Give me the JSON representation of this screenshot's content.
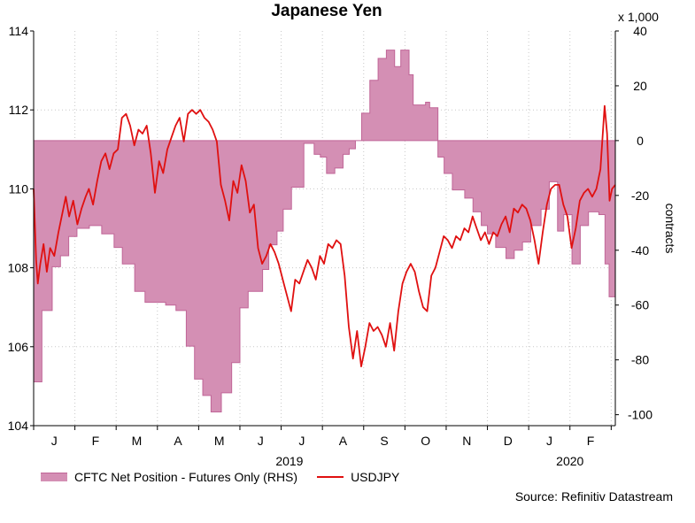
{
  "chart_data": {
    "type": "area+line",
    "title": "Japanese Yen",
    "left_axis": {
      "label": "",
      "min": 104,
      "max": 114,
      "ticks": [
        104,
        106,
        108,
        110,
        112,
        114
      ]
    },
    "right_axis": {
      "label": "contracts",
      "multiplier": "x 1,000",
      "min": -104,
      "max": 40,
      "ticks": [
        40,
        20,
        0,
        -20,
        -40,
        -60,
        -80,
        -100
      ]
    },
    "x_axis": {
      "min": 0,
      "max": 14.1,
      "month_labels": [
        "J",
        "F",
        "M",
        "A",
        "M",
        "J",
        "J",
        "A",
        "S",
        "O",
        "N",
        "D",
        "J",
        "F"
      ],
      "year_labels": [
        {
          "text": "2019",
          "pos": 6.2
        },
        {
          "text": "2020",
          "pos": 13.0
        }
      ]
    },
    "series": [
      {
        "name": "CFTC Net Position - Futures Only (RHS)",
        "axis": "right",
        "kind": "step-area",
        "color": "#d48fb4",
        "edge": "#c06597",
        "points": [
          [
            0.0,
            -88
          ],
          [
            0.2,
            -62
          ],
          [
            0.45,
            -46
          ],
          [
            0.65,
            -42
          ],
          [
            0.85,
            -35
          ],
          [
            1.05,
            -32
          ],
          [
            1.35,
            -31
          ],
          [
            1.65,
            -34
          ],
          [
            1.95,
            -39
          ],
          [
            2.15,
            -45
          ],
          [
            2.45,
            -55
          ],
          [
            2.7,
            -59
          ],
          [
            3.2,
            -60
          ],
          [
            3.45,
            -62
          ],
          [
            3.7,
            -75
          ],
          [
            3.9,
            -87
          ],
          [
            4.1,
            -93
          ],
          [
            4.3,
            -99
          ],
          [
            4.55,
            -92
          ],
          [
            4.8,
            -81
          ],
          [
            5.0,
            -61
          ],
          [
            5.2,
            -55
          ],
          [
            5.55,
            -47
          ],
          [
            5.7,
            -38
          ],
          [
            5.9,
            -33
          ],
          [
            6.05,
            -25
          ],
          [
            6.25,
            -17
          ],
          [
            6.55,
            -1
          ],
          [
            6.8,
            -5
          ],
          [
            6.95,
            -6
          ],
          [
            7.1,
            -12
          ],
          [
            7.3,
            -10
          ],
          [
            7.5,
            -5
          ],
          [
            7.65,
            -3
          ],
          [
            7.8,
            0
          ],
          [
            7.95,
            10
          ],
          [
            8.15,
            22
          ],
          [
            8.35,
            30
          ],
          [
            8.55,
            33
          ],
          [
            8.75,
            27
          ],
          [
            8.9,
            33
          ],
          [
            9.1,
            24
          ],
          [
            9.2,
            13
          ],
          [
            9.5,
            14
          ],
          [
            9.6,
            12
          ],
          [
            9.8,
            -6
          ],
          [
            9.95,
            -12
          ],
          [
            10.15,
            -18
          ],
          [
            10.45,
            -21
          ],
          [
            10.65,
            -26
          ],
          [
            10.85,
            -31
          ],
          [
            11.0,
            -34
          ],
          [
            11.2,
            -39
          ],
          [
            11.45,
            -43
          ],
          [
            11.65,
            -40
          ],
          [
            11.85,
            -37
          ],
          [
            12.05,
            -31
          ],
          [
            12.3,
            -25
          ],
          [
            12.5,
            -15
          ],
          [
            12.7,
            -33
          ],
          [
            12.85,
            -27
          ],
          [
            13.05,
            -45
          ],
          [
            13.25,
            -31
          ],
          [
            13.45,
            -26
          ],
          [
            13.7,
            -27
          ],
          [
            13.85,
            -45
          ],
          [
            13.95,
            -57
          ],
          [
            14.1,
            -57
          ]
        ]
      },
      {
        "name": "USDJPY",
        "axis": "left",
        "kind": "line",
        "color": "#e01010",
        "points": [
          [
            0.0,
            110.0
          ],
          [
            0.06,
            108.2
          ],
          [
            0.1,
            107.6
          ],
          [
            0.16,
            108.1
          ],
          [
            0.24,
            108.6
          ],
          [
            0.32,
            107.9
          ],
          [
            0.4,
            108.5
          ],
          [
            0.5,
            108.3
          ],
          [
            0.6,
            108.9
          ],
          [
            0.7,
            109.4
          ],
          [
            0.78,
            109.8
          ],
          [
            0.86,
            109.3
          ],
          [
            0.96,
            109.7
          ],
          [
            1.06,
            109.1
          ],
          [
            1.16,
            109.5
          ],
          [
            1.26,
            109.8
          ],
          [
            1.34,
            110.0
          ],
          [
            1.44,
            109.6
          ],
          [
            1.54,
            110.2
          ],
          [
            1.64,
            110.7
          ],
          [
            1.74,
            110.9
          ],
          [
            1.84,
            110.5
          ],
          [
            1.94,
            110.9
          ],
          [
            2.04,
            111.0
          ],
          [
            2.14,
            111.8
          ],
          [
            2.24,
            111.9
          ],
          [
            2.34,
            111.6
          ],
          [
            2.44,
            111.1
          ],
          [
            2.54,
            111.5
          ],
          [
            2.64,
            111.4
          ],
          [
            2.74,
            111.6
          ],
          [
            2.84,
            110.9
          ],
          [
            2.94,
            109.9
          ],
          [
            3.04,
            110.7
          ],
          [
            3.14,
            110.4
          ],
          [
            3.24,
            111.0
          ],
          [
            3.34,
            111.3
          ],
          [
            3.44,
            111.6
          ],
          [
            3.54,
            111.8
          ],
          [
            3.64,
            111.2
          ],
          [
            3.74,
            111.9
          ],
          [
            3.84,
            112.0
          ],
          [
            3.94,
            111.9
          ],
          [
            4.04,
            112.0
          ],
          [
            4.14,
            111.8
          ],
          [
            4.24,
            111.7
          ],
          [
            4.34,
            111.5
          ],
          [
            4.44,
            111.2
          ],
          [
            4.54,
            110.1
          ],
          [
            4.64,
            109.7
          ],
          [
            4.74,
            109.2
          ],
          [
            4.84,
            110.2
          ],
          [
            4.94,
            109.9
          ],
          [
            5.04,
            110.6
          ],
          [
            5.14,
            110.2
          ],
          [
            5.24,
            109.4
          ],
          [
            5.34,
            109.6
          ],
          [
            5.44,
            108.5
          ],
          [
            5.54,
            108.1
          ],
          [
            5.64,
            108.3
          ],
          [
            5.74,
            108.6
          ],
          [
            5.84,
            108.4
          ],
          [
            5.94,
            108.1
          ],
          [
            6.04,
            107.7
          ],
          [
            6.14,
            107.3
          ],
          [
            6.24,
            106.9
          ],
          [
            6.34,
            107.7
          ],
          [
            6.44,
            107.6
          ],
          [
            6.54,
            107.9
          ],
          [
            6.64,
            108.2
          ],
          [
            6.74,
            108.0
          ],
          [
            6.84,
            107.7
          ],
          [
            6.94,
            108.3
          ],
          [
            7.04,
            108.1
          ],
          [
            7.14,
            108.6
          ],
          [
            7.24,
            108.5
          ],
          [
            7.34,
            108.7
          ],
          [
            7.44,
            108.6
          ],
          [
            7.54,
            107.8
          ],
          [
            7.64,
            106.5
          ],
          [
            7.74,
            105.7
          ],
          [
            7.84,
            106.4
          ],
          [
            7.94,
            105.5
          ],
          [
            8.04,
            106.0
          ],
          [
            8.14,
            106.6
          ],
          [
            8.24,
            106.4
          ],
          [
            8.34,
            106.5
          ],
          [
            8.44,
            106.3
          ],
          [
            8.54,
            106.0
          ],
          [
            8.64,
            106.6
          ],
          [
            8.74,
            105.9
          ],
          [
            8.84,
            106.9
          ],
          [
            8.94,
            107.6
          ],
          [
            9.04,
            107.9
          ],
          [
            9.14,
            108.1
          ],
          [
            9.24,
            107.9
          ],
          [
            9.34,
            107.4
          ],
          [
            9.44,
            107.0
          ],
          [
            9.54,
            106.9
          ],
          [
            9.64,
            107.8
          ],
          [
            9.74,
            108.0
          ],
          [
            9.84,
            108.4
          ],
          [
            9.94,
            108.8
          ],
          [
            10.04,
            108.7
          ],
          [
            10.14,
            108.5
          ],
          [
            10.24,
            108.8
          ],
          [
            10.34,
            108.7
          ],
          [
            10.44,
            109.0
          ],
          [
            10.54,
            108.9
          ],
          [
            10.64,
            109.3
          ],
          [
            10.74,
            109.0
          ],
          [
            10.84,
            108.7
          ],
          [
            10.94,
            108.9
          ],
          [
            11.04,
            108.6
          ],
          [
            11.14,
            108.9
          ],
          [
            11.24,
            108.8
          ],
          [
            11.34,
            109.1
          ],
          [
            11.44,
            109.3
          ],
          [
            11.54,
            108.9
          ],
          [
            11.64,
            109.5
          ],
          [
            11.74,
            109.4
          ],
          [
            11.84,
            109.6
          ],
          [
            11.94,
            109.5
          ],
          [
            12.04,
            109.2
          ],
          [
            12.14,
            108.7
          ],
          [
            12.24,
            108.1
          ],
          [
            12.34,
            108.9
          ],
          [
            12.44,
            109.6
          ],
          [
            12.54,
            110.0
          ],
          [
            12.64,
            110.1
          ],
          [
            12.74,
            110.1
          ],
          [
            12.84,
            109.6
          ],
          [
            12.94,
            109.3
          ],
          [
            13.04,
            108.5
          ],
          [
            13.14,
            109.0
          ],
          [
            13.24,
            109.7
          ],
          [
            13.34,
            109.9
          ],
          [
            13.44,
            110.0
          ],
          [
            13.54,
            109.8
          ],
          [
            13.64,
            110.0
          ],
          [
            13.74,
            110.5
          ],
          [
            13.84,
            112.1
          ],
          [
            13.9,
            111.4
          ],
          [
            13.96,
            109.7
          ],
          [
            14.02,
            110.0
          ],
          [
            14.1,
            110.1
          ]
        ]
      }
    ],
    "legend": {
      "area_label": "CFTC Net Position - Futures Only (RHS)",
      "line_label": "USDJPY"
    },
    "source": "Source: Refinitiv Datastream"
  }
}
